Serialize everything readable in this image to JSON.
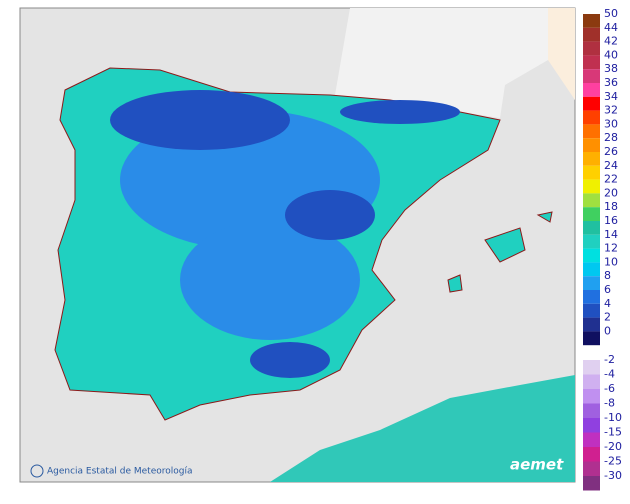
{
  "map": {
    "credit": "Agencia Estatal de Meteorología",
    "logo": "aemet",
    "legend": {
      "items": [
        {
          "label": "50",
          "color": "#8b3a0f"
        },
        {
          "label": "44",
          "color": "#a0302a"
        },
        {
          "label": "42",
          "color": "#b03040"
        },
        {
          "label": "40",
          "color": "#c03050"
        },
        {
          "label": "38",
          "color": "#d83878"
        },
        {
          "label": "36",
          "color": "#ff40a0"
        },
        {
          "label": "34",
          "color": "#ff0000"
        },
        {
          "label": "32",
          "color": "#ff4000"
        },
        {
          "label": "30",
          "color": "#ff7000"
        },
        {
          "label": "28",
          "color": "#ff9000"
        },
        {
          "label": "26",
          "color": "#ffb000"
        },
        {
          "label": "24",
          "color": "#ffd000"
        },
        {
          "label": "22",
          "color": "#f0f000"
        },
        {
          "label": "20",
          "color": "#a0e040"
        },
        {
          "label": "18",
          "color": "#40d060"
        },
        {
          "label": "16",
          "color": "#20c0a0"
        },
        {
          "label": "14",
          "color": "#20d0c0"
        },
        {
          "label": "12",
          "color": "#00e0e0"
        },
        {
          "label": "10",
          "color": "#00c8f0"
        },
        {
          "label": "8",
          "color": "#20a0f0"
        },
        {
          "label": "6",
          "color": "#2070e0"
        },
        {
          "label": "4",
          "color": "#2050c0"
        },
        {
          "label": "2",
          "color": "#203090"
        },
        {
          "label": "0",
          "color": "#101060"
        }
      ],
      "negative_items": [
        {
          "label": "-2",
          "color": "#e0d0f0"
        },
        {
          "label": "-4",
          "color": "#d0b0f0"
        },
        {
          "label": "-6",
          "color": "#c090f0"
        },
        {
          "label": "-8",
          "color": "#a060e0"
        },
        {
          "label": "-10",
          "color": "#9040e0"
        },
        {
          "label": "-15",
          "color": "#c030c0"
        },
        {
          "label": "-20",
          "color": "#d02090"
        },
        {
          "label": "-25",
          "color": "#b03090"
        },
        {
          "label": "-30",
          "color": "#803080"
        }
      ]
    }
  }
}
